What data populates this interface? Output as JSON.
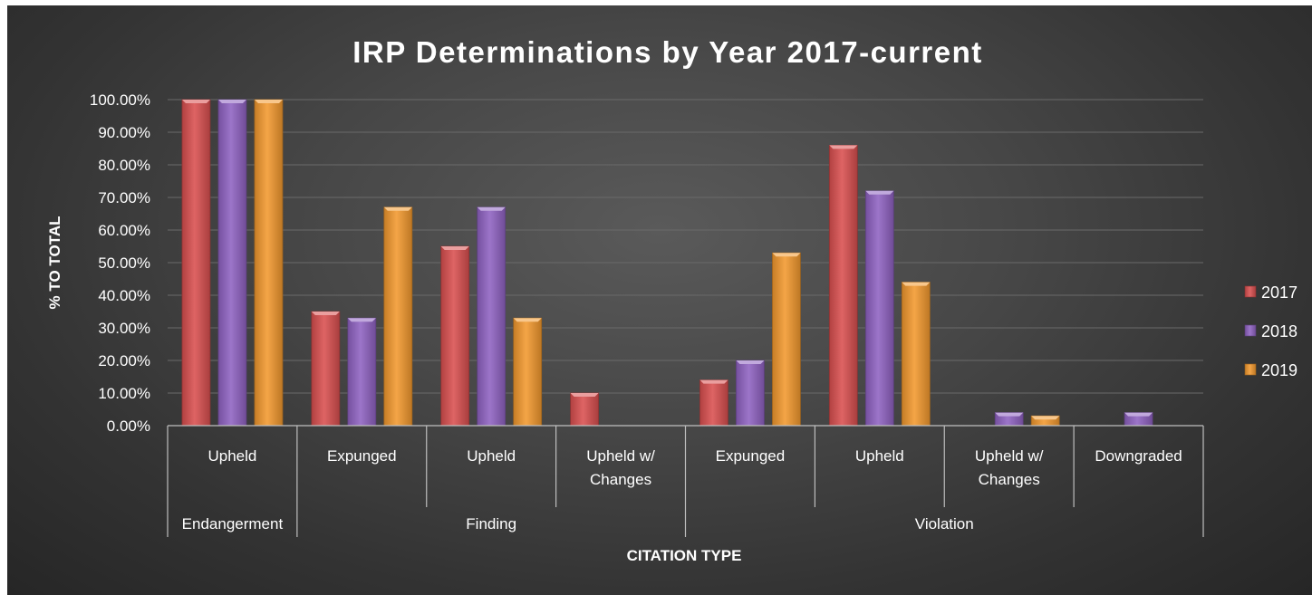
{
  "chart_data": {
    "type": "bar",
    "title": "IRP Determinations by Year 2017-current",
    "xlabel": "CITATION TYPE",
    "ylabel": "% TO TOTAL",
    "ylim": [
      0,
      100
    ],
    "y_ticks": [
      "0.00%",
      "10.00%",
      "20.00%",
      "30.00%",
      "40.00%",
      "50.00%",
      "60.00%",
      "70.00%",
      "80.00%",
      "90.00%",
      "100.00%"
    ],
    "groups": [
      {
        "label": "Endangerment",
        "categories": [
          [
            "Upheld"
          ]
        ]
      },
      {
        "label": "Finding",
        "categories": [
          [
            "Expunged"
          ],
          [
            "Upheld"
          ],
          [
            "Upheld w/",
            "Changes"
          ]
        ]
      },
      {
        "label": "Violation",
        "categories": [
          [
            "Expunged"
          ],
          [
            "Upheld"
          ],
          [
            "Upheld w/",
            "Changes"
          ],
          [
            "Downgraded"
          ]
        ]
      }
    ],
    "series": [
      {
        "name": "2017",
        "color": "#d94f4f",
        "values": [
          100,
          35,
          55,
          10,
          14,
          86,
          0,
          0
        ]
      },
      {
        "name": "2018",
        "color": "#8f62c2",
        "values": [
          100,
          33,
          67,
          0,
          20,
          72,
          4,
          4
        ]
      },
      {
        "name": "2019",
        "color": "#f2992e",
        "values": [
          100,
          67,
          33,
          0,
          53,
          44,
          3,
          0
        ]
      }
    ],
    "grid": true,
    "legend": "right"
  }
}
